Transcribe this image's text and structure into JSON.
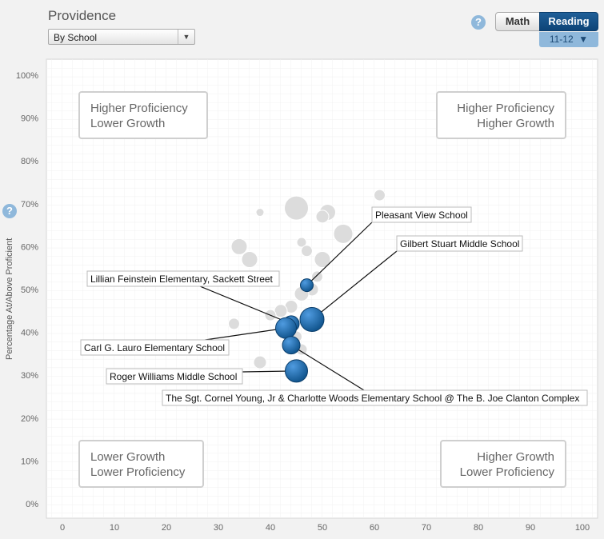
{
  "header": {
    "title": "Providence",
    "view_select": "By School",
    "tabs": [
      {
        "label": "Math",
        "active": false
      },
      {
        "label": "Reading",
        "active": true
      }
    ],
    "grade_select": "11-12",
    "help_glyph": "?"
  },
  "chart_data": {
    "type": "scatter",
    "title": "Providence",
    "xlabel": "",
    "ylabel": "Percentage At/Above Proficient",
    "xlim": [
      0,
      100
    ],
    "ylim": [
      0,
      100
    ],
    "x_ticks": [
      "0",
      "10",
      "20",
      "30",
      "40",
      "50",
      "60",
      "70",
      "80",
      "90",
      "100"
    ],
    "y_ticks": [
      "0%",
      "10%",
      "20%",
      "30%",
      "40%",
      "50%",
      "60%",
      "70%",
      "80%",
      "90%",
      "100%"
    ],
    "grid": true,
    "quadrants": [
      {
        "line1": "Higher Proficiency",
        "line2": "Lower Growth",
        "position": "top-left"
      },
      {
        "line1": "Higher Proficiency",
        "line2": "Higher Growth",
        "position": "top-right"
      },
      {
        "line1": "Lower Growth",
        "line2": "Lower Proficiency",
        "position": "bottom-left"
      },
      {
        "line1": "Higher Growth",
        "line2": "Lower Proficiency",
        "position": "bottom-right"
      }
    ],
    "highlighted": [
      {
        "name": "Pleasant View School",
        "x": 47,
        "y": 51,
        "r": 8
      },
      {
        "name": "Gilbert Stuart Middle School",
        "x": 48,
        "y": 43,
        "r": 15
      },
      {
        "name": "Lillian Feinstein Elementary, Sackett Street",
        "x": 44,
        "y": 42,
        "r": 10
      },
      {
        "name": "Carl G. Lauro Elementary School",
        "x": 43,
        "y": 41,
        "r": 13
      },
      {
        "name": "The Sgt. Cornel Young, Jr & Charlotte Woods Elementary School @ The B. Joe Clanton Complex",
        "x": 44,
        "y": 37,
        "r": 11
      },
      {
        "name": "Roger Williams Middle School",
        "x": 45,
        "y": 31,
        "r": 14
      }
    ],
    "others": [
      {
        "x": 61,
        "y": 72,
        "r": 7
      },
      {
        "x": 45,
        "y": 69,
        "r": 15
      },
      {
        "x": 51,
        "y": 68,
        "r": 10
      },
      {
        "x": 50,
        "y": 67,
        "r": 8
      },
      {
        "x": 38,
        "y": 68,
        "r": 5
      },
      {
        "x": 54,
        "y": 63,
        "r": 12
      },
      {
        "x": 46,
        "y": 61,
        "r": 6
      },
      {
        "x": 47,
        "y": 59,
        "r": 7
      },
      {
        "x": 34,
        "y": 60,
        "r": 10
      },
      {
        "x": 36,
        "y": 57,
        "r": 10
      },
      {
        "x": 50,
        "y": 57,
        "r": 10
      },
      {
        "x": 49,
        "y": 53,
        "r": 7
      },
      {
        "x": 48,
        "y": 50,
        "r": 8
      },
      {
        "x": 46,
        "y": 49,
        "r": 9
      },
      {
        "x": 44,
        "y": 46,
        "r": 8
      },
      {
        "x": 42,
        "y": 45,
        "r": 8
      },
      {
        "x": 40,
        "y": 44,
        "r": 7
      },
      {
        "x": 33,
        "y": 42,
        "r": 7
      },
      {
        "x": 45,
        "y": 39,
        "r": 7
      },
      {
        "x": 46,
        "y": 36,
        "r": 7
      },
      {
        "x": 38,
        "y": 33,
        "r": 8
      }
    ]
  }
}
